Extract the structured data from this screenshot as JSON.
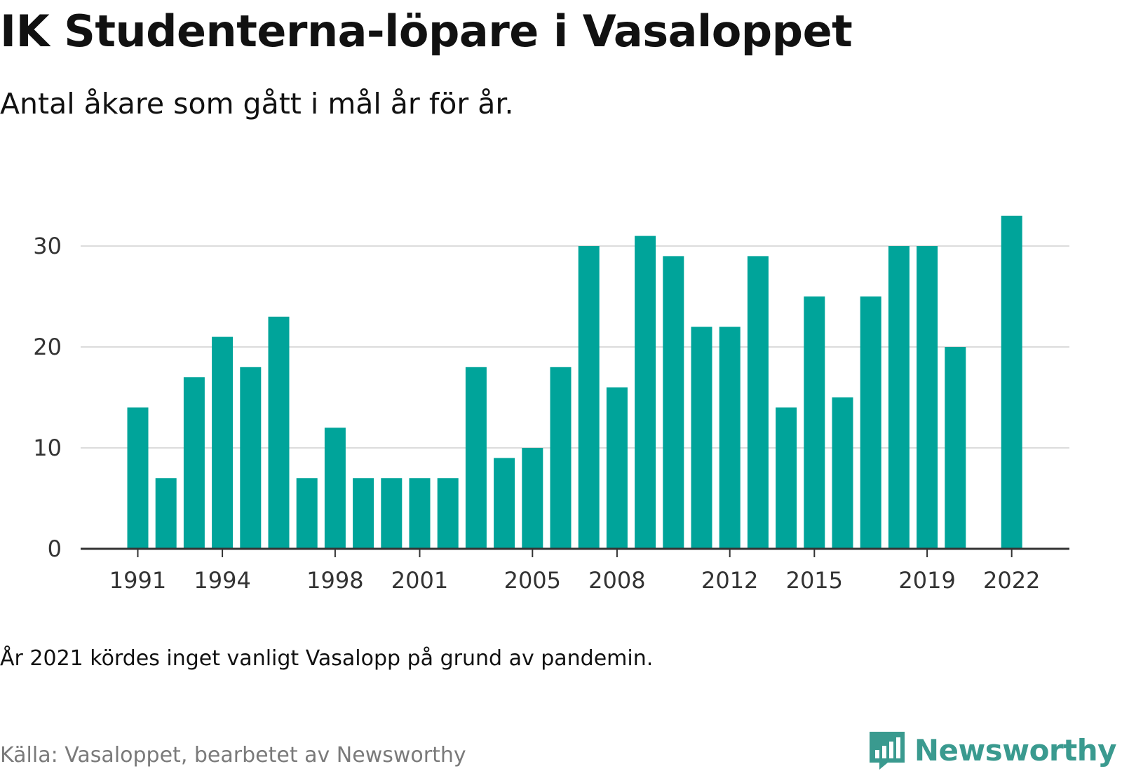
{
  "title": "IK Studenterna-löpare i Vasaloppet",
  "subtitle": "Antal åkare som gått i mål år för år.",
  "note": "År 2021 kördes inget vanligt Vasalopp på grund av pandemin.",
  "source": "Källa: Vasaloppet, bearbetet av Newsworthy",
  "brand": {
    "name": "Newsworthy",
    "icon": "newsworthy-logo-icon"
  },
  "colors": {
    "bar": "#00A49A",
    "grid": "#dcdcdc",
    "axis": "#333333"
  },
  "chart_data": {
    "type": "bar",
    "categories": [
      1991,
      1992,
      1993,
      1994,
      1995,
      1996,
      1997,
      1998,
      1999,
      2000,
      2001,
      2002,
      2003,
      2004,
      2005,
      2006,
      2007,
      2008,
      2009,
      2010,
      2011,
      2012,
      2013,
      2014,
      2015,
      2016,
      2017,
      2018,
      2019,
      2020,
      2021,
      2022
    ],
    "values": [
      14,
      7,
      17,
      21,
      18,
      23,
      7,
      12,
      7,
      7,
      7,
      7,
      18,
      9,
      10,
      18,
      30,
      16,
      31,
      29,
      22,
      22,
      29,
      14,
      25,
      15,
      25,
      30,
      30,
      20,
      null,
      33
    ],
    "xticks": [
      "1991",
      "1994",
      "1998",
      "2001",
      "2005",
      "2008",
      "2012",
      "2015",
      "2019",
      "2022"
    ],
    "yticks": [
      "0",
      "10",
      "20",
      "30"
    ],
    "ylim": [
      0,
      33
    ],
    "xlabel": "",
    "ylabel": "",
    "grid": "horizontal",
    "legend": "none"
  }
}
